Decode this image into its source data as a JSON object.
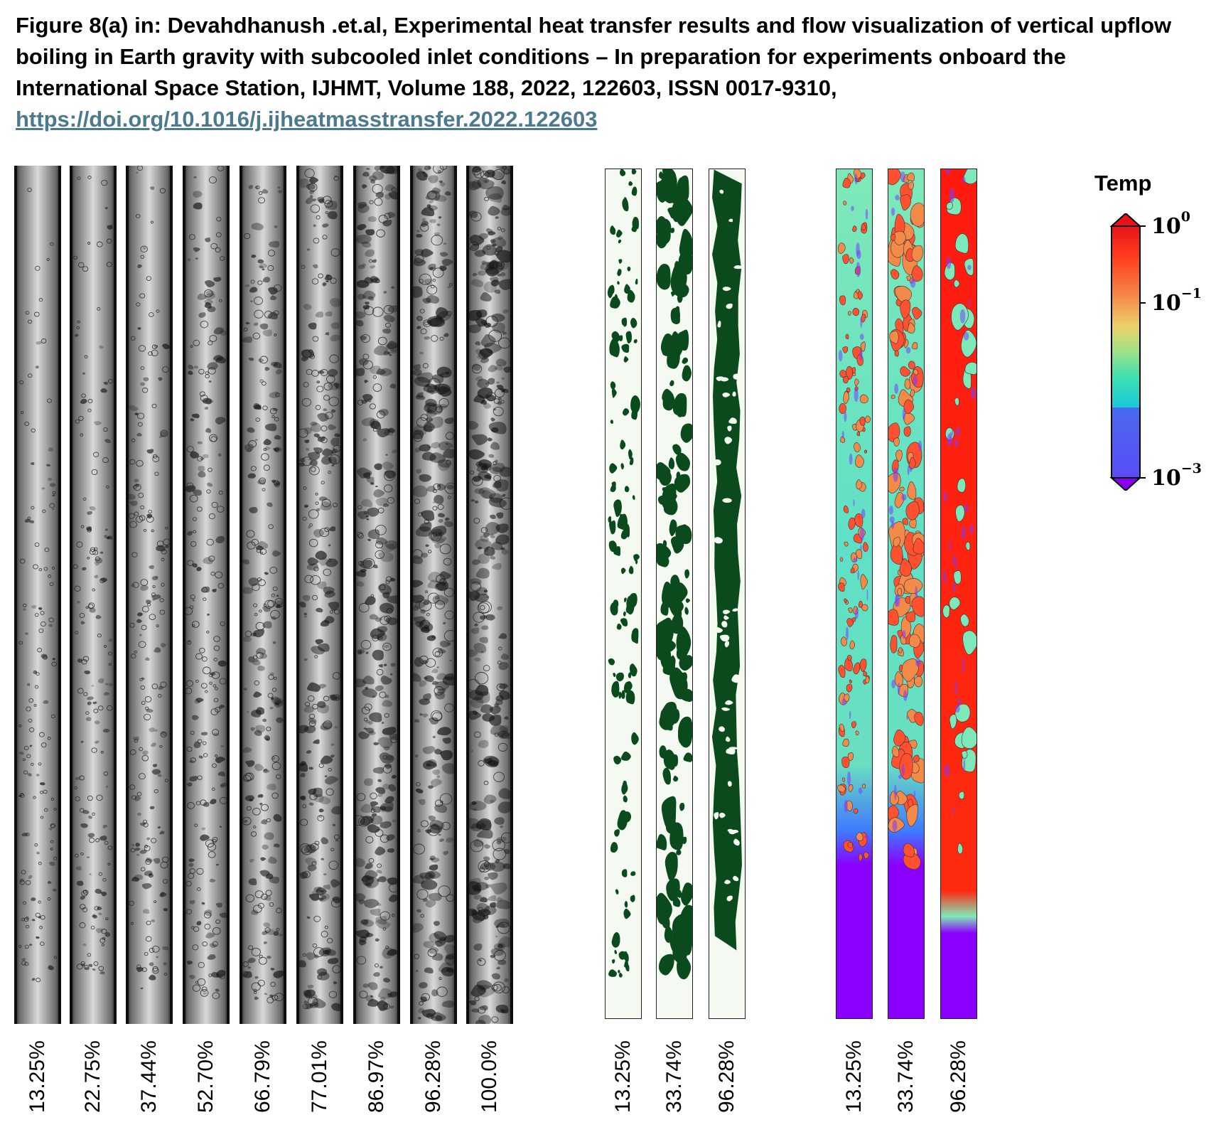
{
  "caption": {
    "text": "Figure 8(a) in: Devahdhanush .et.al, Experimental heat transfer results and flow visualization of vertical upflow boiling in Earth gravity with subcooled inlet conditions – In preparation for experiments onboard the International Space Station, IJHMT, Volume 188, 2022, 122603, ISSN 0017-9310, ",
    "link": "https://doi.org/10.1016/j.ijheatmasstransfer.2022.122603"
  },
  "photo_strips": [
    "13.25%",
    "22.75%",
    "37.44%",
    "52.70%",
    "66.79%",
    "77.01%",
    "86.97%",
    "96.28%",
    "100.0%"
  ],
  "vof_strips": [
    "13.25%",
    "33.74%",
    "96.28%"
  ],
  "temp_strips": [
    "13.25%",
    "33.74%",
    "96.28%"
  ],
  "colorbar": {
    "title": "Temp",
    "ticks": [
      {
        "base": "10",
        "exp": "0"
      },
      {
        "base": "10",
        "exp": "−1"
      },
      {
        "base": "10",
        "exp": "−3"
      }
    ]
  },
  "colors": {
    "vapor_green": "#0b4a1c",
    "liquid_bg": "#f4faf2",
    "link": "#4a7a8c"
  }
}
